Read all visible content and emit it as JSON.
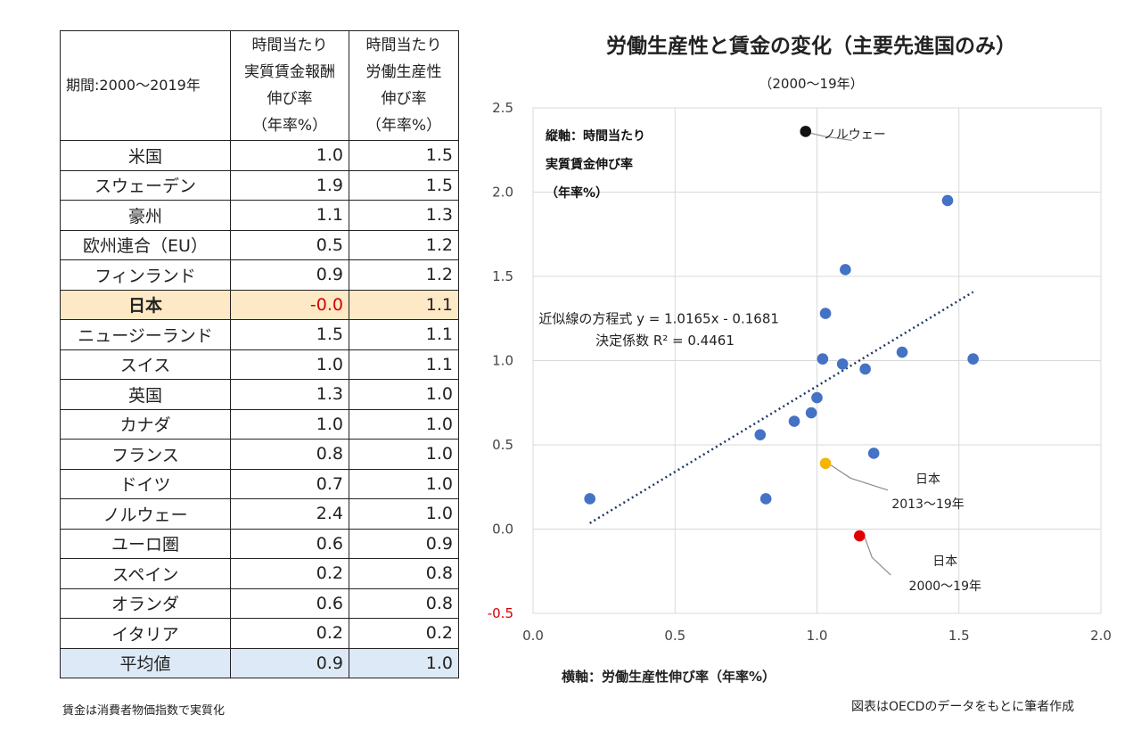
{
  "table": {
    "header": {
      "period": "期間:2000〜2019年",
      "col1": [
        "時間当たり",
        "実質賃金報酬",
        "伸び率",
        "（年率%）"
      ],
      "col2": [
        "時間当たり",
        "労働生産性",
        "伸び率",
        "（年率%）"
      ]
    },
    "rows": [
      {
        "name": "米国",
        "wage": "1.0",
        "prod": "1.5"
      },
      {
        "name": "スウェーデン",
        "wage": "1.9",
        "prod": "1.5"
      },
      {
        "name": "豪州",
        "wage": "1.1",
        "prod": "1.3"
      },
      {
        "name": "欧州連合（EU）",
        "wage": "0.5",
        "prod": "1.2"
      },
      {
        "name": "フィンランド",
        "wage": "0.9",
        "prod": "1.2"
      },
      {
        "name": "日本",
        "wage": "-0.0",
        "prod": "1.1"
      },
      {
        "name": "ニュージーランド",
        "wage": "1.5",
        "prod": "1.1"
      },
      {
        "name": "スイス",
        "wage": "1.0",
        "prod": "1.1"
      },
      {
        "name": "英国",
        "wage": "1.3",
        "prod": "1.0"
      },
      {
        "name": "カナダ",
        "wage": "1.0",
        "prod": "1.0"
      },
      {
        "name": "フランス",
        "wage": "0.8",
        "prod": "1.0"
      },
      {
        "name": "ドイツ",
        "wage": "0.7",
        "prod": "1.0"
      },
      {
        "name": "ノルウェー",
        "wage": "2.4",
        "prod": "1.0"
      },
      {
        "name": "ユーロ圏",
        "wage": "0.6",
        "prod": "0.9"
      },
      {
        "name": "スペイン",
        "wage": "0.2",
        "prod": "0.8"
      },
      {
        "name": "オランダ",
        "wage": "0.6",
        "prod": "0.8"
      },
      {
        "name": "イタリア",
        "wage": "0.2",
        "prod": "0.2"
      }
    ],
    "average": {
      "name": "平均値",
      "wage": "0.9",
      "prod": "1.0"
    },
    "note": "賃金は消費者物価指数で実質化"
  },
  "source": "図表はOECDのデータをもとに筆者作成",
  "chart_data": {
    "type": "scatter",
    "title": "労働生産性と賃金の変化（主要先進国のみ）",
    "subtitle": "（2000〜19年）",
    "xlabel": "横軸：労働生産性伸び率（年率%）",
    "ylabel": [
      "縦軸：時間当たり",
      "実質賃金伸び率",
      "（年率%）"
    ],
    "xlim": [
      0.0,
      2.0
    ],
    "ylim": [
      -0.5,
      2.5
    ],
    "xticks": [
      "0.0",
      "0.5",
      "1.0",
      "1.5",
      "2.0"
    ],
    "yticks": [
      "2.5",
      "2.0",
      "1.5",
      "1.0",
      "0.5",
      "0.0",
      "-0.5"
    ],
    "grid": true,
    "colors": {
      "point": "#4472c4",
      "norway": "#111111",
      "japan_recent": "#f4b400",
      "japan": "#e00000",
      "trend": "#1f3864"
    },
    "points": [
      {
        "x": 0.96,
        "y": 2.36,
        "kind": "norway"
      },
      {
        "x": 1.46,
        "y": 1.95,
        "kind": "normal"
      },
      {
        "x": 1.1,
        "y": 1.54,
        "kind": "normal"
      },
      {
        "x": 1.03,
        "y": 1.28,
        "kind": "normal"
      },
      {
        "x": 1.3,
        "y": 1.05,
        "kind": "normal"
      },
      {
        "x": 1.55,
        "y": 1.01,
        "kind": "normal"
      },
      {
        "x": 1.02,
        "y": 1.01,
        "kind": "normal"
      },
      {
        "x": 1.09,
        "y": 0.98,
        "kind": "normal"
      },
      {
        "x": 1.17,
        "y": 0.95,
        "kind": "normal"
      },
      {
        "x": 1.0,
        "y": 0.78,
        "kind": "normal"
      },
      {
        "x": 0.98,
        "y": 0.69,
        "kind": "normal"
      },
      {
        "x": 0.92,
        "y": 0.64,
        "kind": "normal"
      },
      {
        "x": 0.8,
        "y": 0.56,
        "kind": "normal"
      },
      {
        "x": 1.2,
        "y": 0.45,
        "kind": "normal"
      },
      {
        "x": 0.2,
        "y": 0.18,
        "kind": "normal"
      },
      {
        "x": 0.82,
        "y": 0.18,
        "kind": "normal"
      },
      {
        "x": 1.03,
        "y": 0.39,
        "kind": "japan_recent"
      },
      {
        "x": 1.15,
        "y": -0.04,
        "kind": "japan"
      }
    ],
    "trendline": {
      "slope": 1.0165,
      "intercept": -0.1681,
      "x_from": 0.2,
      "x_to": 1.55
    },
    "equation": "近似線の方程式 y = 1.0165x - 0.1681",
    "r2": "決定係数 R² = 0.4461",
    "annotations": [
      {
        "kind": "norway",
        "lines": [
          "ノルウェー"
        ]
      },
      {
        "kind": "japan_recent",
        "lines": [
          "日本",
          "2013〜19年"
        ]
      },
      {
        "kind": "japan",
        "lines": [
          "日本",
          "2000〜19年"
        ]
      }
    ]
  }
}
